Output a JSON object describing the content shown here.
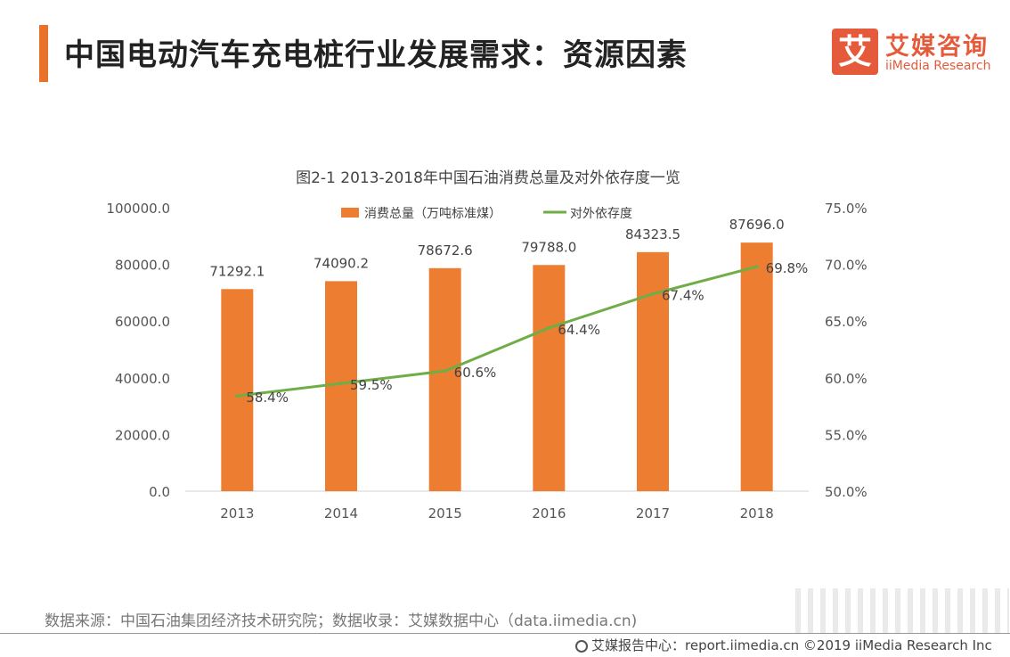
{
  "header": {
    "title": "中国电动汽车充电桩行业发展需求：资源因素",
    "logo_mark": "艾",
    "logo_cn": "艾媒咨询",
    "logo_en": "iiMedia Research"
  },
  "colors": {
    "accent": "#e8722c",
    "bar": "#ed7d31",
    "line": "#70ad47"
  },
  "chart_data": {
    "type": "bar",
    "title": "图2-1 2013-2018年中国石油消费总量及对外依存度一览",
    "categories": [
      "2013",
      "2014",
      "2015",
      "2016",
      "2017",
      "2018"
    ],
    "series": [
      {
        "name": "消费总量（万吨标准煤）",
        "type": "bar",
        "axis": "left",
        "values": [
          71292.1,
          74090.2,
          78672.6,
          79788.0,
          84323.5,
          87696.0
        ],
        "labels": [
          "71292.1",
          "74090.2",
          "78672.6",
          "79788.0",
          "84323.5",
          "87696.0"
        ]
      },
      {
        "name": "对外依存度",
        "type": "line",
        "axis": "right",
        "values": [
          58.4,
          59.5,
          60.6,
          64.4,
          67.4,
          69.8
        ],
        "labels": [
          "58.4%",
          "59.5%",
          "60.6%",
          "64.4%",
          "67.4%",
          "69.8%"
        ]
      }
    ],
    "y_left": {
      "min": 0,
      "max": 100000,
      "ticks": [
        "0.0",
        "20000.0",
        "40000.0",
        "60000.0",
        "80000.0",
        "100000.0"
      ]
    },
    "y_right": {
      "min": 50,
      "max": 75,
      "ticks": [
        "50.0%",
        "55.0%",
        "60.0%",
        "65.0%",
        "70.0%",
        "75.0%"
      ]
    },
    "legend_position": "top-center"
  },
  "source": "数据来源：中国石油集团经济技术研究院；数据收录：艾媒数据中心（data.iimedia.cn)",
  "footer": "艾媒报告中心：report.iimedia.cn  ©2019  iiMedia Research  Inc"
}
